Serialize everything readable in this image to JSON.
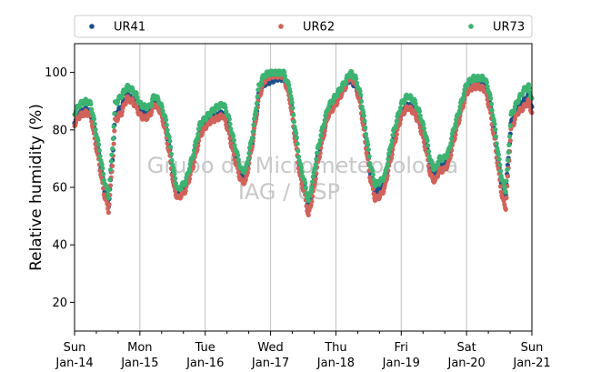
{
  "chart_data": {
    "type": "scatter",
    "title": "",
    "xlabel": "",
    "ylabel": "Relative humidity (%)",
    "ylim": [
      10,
      110
    ],
    "xlim": [
      0,
      7
    ],
    "yticks": [
      20,
      40,
      60,
      80,
      100
    ],
    "xticks": [
      {
        "x": 0,
        "day": "Sun",
        "date": "Jan-14"
      },
      {
        "x": 1,
        "day": "Mon",
        "date": "Jan-15"
      },
      {
        "x": 2,
        "day": "Tue",
        "date": "Jan-16"
      },
      {
        "x": 3,
        "day": "Wed",
        "date": "Jan-17"
      },
      {
        "x": 4,
        "day": "Thu",
        "date": "Jan-18"
      },
      {
        "x": 5,
        "day": "Fri",
        "date": "Jan-19"
      },
      {
        "x": 6,
        "day": "Sat",
        "date": "Jan-20"
      },
      {
        "x": 7,
        "day": "Sun",
        "date": "Jan-21"
      }
    ],
    "x_minor_ticks_per_day": 2,
    "grid": "vertical-major",
    "legend_position": "top",
    "watermark": [
      "Grupo de Micrometeorologia",
      "IAG / USP"
    ],
    "series": [
      {
        "name": "UR41",
        "color": "#1f4e8c",
        "points": [
          [
            0.0,
            83
          ],
          [
            0.08,
            86
          ],
          [
            0.18,
            87
          ],
          [
            0.25,
            86
          ],
          [
            0.3,
            80
          ],
          [
            0.38,
            70
          ],
          [
            0.45,
            60
          ],
          [
            0.52,
            54
          ],
          [
            0.58,
            70
          ],
          [
            0.62,
            85
          ],
          [
            0.72,
            88
          ],
          [
            0.8,
            92
          ],
          [
            0.88,
            91
          ],
          [
            0.95,
            89
          ],
          [
            1.0,
            87
          ],
          [
            1.08,
            86
          ],
          [
            1.15,
            86
          ],
          [
            1.22,
            90
          ],
          [
            1.3,
            88
          ],
          [
            1.38,
            82
          ],
          [
            1.45,
            74
          ],
          [
            1.52,
            62
          ],
          [
            1.58,
            57
          ],
          [
            1.7,
            61
          ],
          [
            1.82,
            70
          ],
          [
            1.92,
            79
          ],
          [
            2.0,
            82
          ],
          [
            2.08,
            84
          ],
          [
            2.18,
            85
          ],
          [
            2.28,
            86
          ],
          [
            2.35,
            82
          ],
          [
            2.45,
            72
          ],
          [
            2.55,
            64
          ],
          [
            2.62,
            64
          ],
          [
            2.72,
            76
          ],
          [
            2.82,
            92
          ],
          [
            2.9,
            96
          ],
          [
            3.0,
            97
          ],
          [
            3.1,
            98
          ],
          [
            3.2,
            98
          ],
          [
            3.3,
            92
          ],
          [
            3.38,
            78
          ],
          [
            3.45,
            66
          ],
          [
            3.52,
            60
          ],
          [
            3.58,
            52
          ],
          [
            3.65,
            60
          ],
          [
            3.72,
            70
          ],
          [
            3.8,
            78
          ],
          [
            3.88,
            86
          ],
          [
            4.0,
            90
          ],
          [
            4.12,
            94
          ],
          [
            4.22,
            98
          ],
          [
            4.3,
            95
          ],
          [
            4.38,
            90
          ],
          [
            4.45,
            78
          ],
          [
            4.52,
            66
          ],
          [
            4.6,
            58
          ],
          [
            4.68,
            60
          ],
          [
            4.75,
            62
          ],
          [
            4.8,
            68
          ],
          [
            4.88,
            76
          ],
          [
            5.0,
            86
          ],
          [
            5.1,
            89
          ],
          [
            5.2,
            87
          ],
          [
            5.28,
            83
          ],
          [
            5.38,
            75
          ],
          [
            5.45,
            66
          ],
          [
            5.52,
            63
          ],
          [
            5.58,
            68
          ],
          [
            5.65,
            68
          ],
          [
            5.72,
            70
          ],
          [
            5.8,
            78
          ],
          [
            5.9,
            86
          ],
          [
            6.0,
            94
          ],
          [
            6.1,
            96
          ],
          [
            6.2,
            96
          ],
          [
            6.28,
            96
          ],
          [
            6.35,
            90
          ],
          [
            6.42,
            80
          ],
          [
            6.5,
            66
          ],
          [
            6.55,
            60
          ],
          [
            6.6,
            58
          ],
          [
            6.68,
            82
          ],
          [
            6.78,
            88
          ],
          [
            6.88,
            90
          ],
          [
            6.95,
            92
          ],
          [
            7.0,
            88
          ]
        ]
      },
      {
        "name": "UR62",
        "color": "#d1625a",
        "points": [
          [
            0.0,
            82
          ],
          [
            0.08,
            85
          ],
          [
            0.18,
            86
          ],
          [
            0.25,
            85
          ],
          [
            0.3,
            78
          ],
          [
            0.38,
            68
          ],
          [
            0.45,
            58
          ],
          [
            0.52,
            52
          ],
          [
            0.58,
            68
          ],
          [
            0.62,
            83
          ],
          [
            0.72,
            86
          ],
          [
            0.8,
            91
          ],
          [
            0.88,
            90
          ],
          [
            0.95,
            88
          ],
          [
            1.0,
            85
          ],
          [
            1.08,
            84
          ],
          [
            1.15,
            85
          ],
          [
            1.22,
            89
          ],
          [
            1.3,
            87
          ],
          [
            1.38,
            81
          ],
          [
            1.45,
            72
          ],
          [
            1.52,
            60
          ],
          [
            1.58,
            56
          ],
          [
            1.7,
            59
          ],
          [
            1.82,
            68
          ],
          [
            1.92,
            78
          ],
          [
            2.0,
            81
          ],
          [
            2.08,
            83
          ],
          [
            2.18,
            84
          ],
          [
            2.28,
            85
          ],
          [
            2.35,
            80
          ],
          [
            2.45,
            70
          ],
          [
            2.55,
            62
          ],
          [
            2.62,
            62
          ],
          [
            2.72,
            75
          ],
          [
            2.82,
            91
          ],
          [
            2.9,
            97
          ],
          [
            3.0,
            99
          ],
          [
            3.1,
            99
          ],
          [
            3.2,
            99
          ],
          [
            3.3,
            90
          ],
          [
            3.38,
            76
          ],
          [
            3.45,
            64
          ],
          [
            3.52,
            58
          ],
          [
            3.58,
            50
          ],
          [
            3.65,
            58
          ],
          [
            3.72,
            68
          ],
          [
            3.8,
            77
          ],
          [
            3.88,
            85
          ],
          [
            4.0,
            89
          ],
          [
            4.12,
            94
          ],
          [
            4.22,
            99
          ],
          [
            4.3,
            96
          ],
          [
            4.38,
            88
          ],
          [
            4.45,
            76
          ],
          [
            4.52,
            64
          ],
          [
            4.6,
            56
          ],
          [
            4.68,
            57
          ],
          [
            4.75,
            60
          ],
          [
            4.8,
            66
          ],
          [
            4.88,
            74
          ],
          [
            5.0,
            85
          ],
          [
            5.1,
            88
          ],
          [
            5.2,
            86
          ],
          [
            5.28,
            82
          ],
          [
            5.38,
            73
          ],
          [
            5.45,
            64
          ],
          [
            5.52,
            62
          ],
          [
            5.58,
            66
          ],
          [
            5.65,
            66
          ],
          [
            5.72,
            68
          ],
          [
            5.8,
            76
          ],
          [
            5.9,
            85
          ],
          [
            6.0,
            93
          ],
          [
            6.1,
            95
          ],
          [
            6.2,
            95
          ],
          [
            6.28,
            94
          ],
          [
            6.35,
            88
          ],
          [
            6.42,
            78
          ],
          [
            6.5,
            64
          ],
          [
            6.55,
            56
          ],
          [
            6.6,
            53
          ],
          [
            6.68,
            80
          ],
          [
            6.78,
            86
          ],
          [
            6.88,
            88
          ],
          [
            6.95,
            90
          ],
          [
            7.0,
            86
          ]
        ]
      },
      {
        "name": "UR73",
        "color": "#3cb371",
        "points": [
          [
            0.0,
            86
          ],
          [
            0.08,
            89
          ],
          [
            0.18,
            90
          ],
          [
            0.25,
            89
          ],
          [
            0.3,
            83
          ],
          [
            0.38,
            73
          ],
          [
            0.45,
            63
          ],
          [
            0.52,
            57
          ],
          [
            0.58,
            74
          ],
          [
            0.62,
            89
          ],
          [
            0.72,
            92
          ],
          [
            0.8,
            95
          ],
          [
            0.88,
            94
          ],
          [
            0.95,
            92
          ],
          [
            1.0,
            89
          ],
          [
            1.08,
            88
          ],
          [
            1.15,
            88
          ],
          [
            1.22,
            92
          ],
          [
            1.3,
            90
          ],
          [
            1.38,
            85
          ],
          [
            1.45,
            77
          ],
          [
            1.52,
            65
          ],
          [
            1.58,
            59
          ],
          [
            1.7,
            62
          ],
          [
            1.82,
            72
          ],
          [
            1.92,
            82
          ],
          [
            2.0,
            84
          ],
          [
            2.08,
            86
          ],
          [
            2.18,
            88
          ],
          [
            2.28,
            89
          ],
          [
            2.35,
            85
          ],
          [
            2.45,
            75
          ],
          [
            2.55,
            66
          ],
          [
            2.62,
            66
          ],
          [
            2.72,
            78
          ],
          [
            2.82,
            95
          ],
          [
            2.9,
            99
          ],
          [
            3.0,
            100
          ],
          [
            3.1,
            100
          ],
          [
            3.2,
            100
          ],
          [
            3.3,
            94
          ],
          [
            3.38,
            80
          ],
          [
            3.45,
            68
          ],
          [
            3.52,
            62
          ],
          [
            3.58,
            55
          ],
          [
            3.65,
            63
          ],
          [
            3.72,
            73
          ],
          [
            3.8,
            81
          ],
          [
            3.88,
            88
          ],
          [
            4.0,
            92
          ],
          [
            4.12,
            96
          ],
          [
            4.22,
            100
          ],
          [
            4.3,
            98
          ],
          [
            4.38,
            92
          ],
          [
            4.45,
            81
          ],
          [
            4.52,
            69
          ],
          [
            4.6,
            61
          ],
          [
            4.68,
            62
          ],
          [
            4.75,
            64
          ],
          [
            4.8,
            70
          ],
          [
            4.88,
            79
          ],
          [
            5.0,
            89
          ],
          [
            5.1,
            92
          ],
          [
            5.2,
            90
          ],
          [
            5.28,
            86
          ],
          [
            5.38,
            78
          ],
          [
            5.45,
            69
          ],
          [
            5.52,
            66
          ],
          [
            5.58,
            70
          ],
          [
            5.65,
            70
          ],
          [
            5.72,
            72
          ],
          [
            5.8,
            80
          ],
          [
            5.9,
            88
          ],
          [
            6.0,
            96
          ],
          [
            6.1,
            98
          ],
          [
            6.2,
            98
          ],
          [
            6.28,
            98
          ],
          [
            6.35,
            93
          ],
          [
            6.42,
            83
          ],
          [
            6.5,
            69
          ],
          [
            6.55,
            62
          ],
          [
            6.6,
            59
          ],
          [
            6.68,
            85
          ],
          [
            6.78,
            90
          ],
          [
            6.88,
            94
          ],
          [
            6.95,
            95
          ],
          [
            7.0,
            91
          ]
        ]
      }
    ]
  }
}
